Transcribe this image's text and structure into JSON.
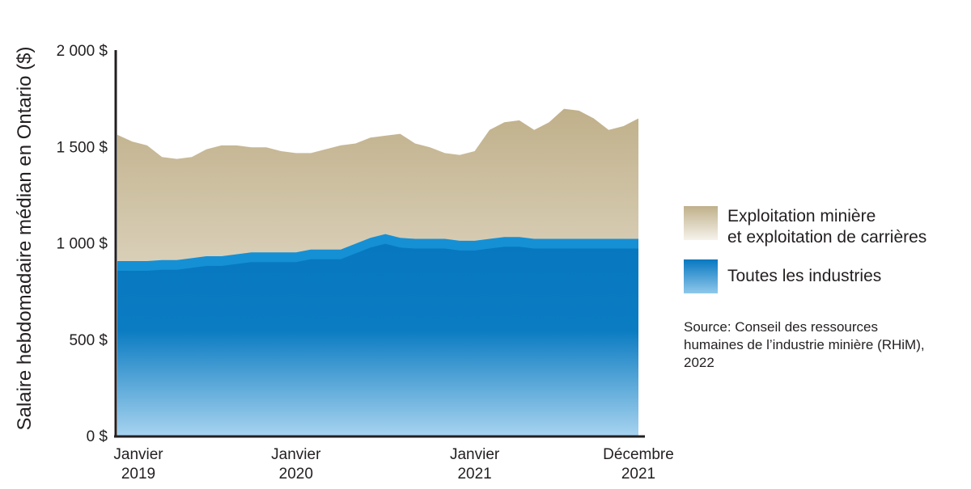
{
  "chart_data": {
    "type": "area",
    "ylabel": "Salaire hebdomadaire médian en Ontario ($)",
    "ylim": [
      0,
      2000
    ],
    "y_ticks": [
      "0 $",
      "500 $",
      "1 000 $",
      "1 500 $",
      "2 000 $"
    ],
    "y_tick_values": [
      0,
      500,
      1000,
      1500,
      2000
    ],
    "x_ticks": [
      {
        "line1": "Janvier",
        "line2": "2019",
        "index": 0
      },
      {
        "line1": "Janvier",
        "line2": "2020",
        "index": 12
      },
      {
        "line1": "Janvier",
        "line2": "2021",
        "index": 24
      },
      {
        "line1": "Décembre",
        "line2": "2021",
        "index": 35
      }
    ],
    "x": [
      "2019-01",
      "2019-02",
      "2019-03",
      "2019-04",
      "2019-05",
      "2019-06",
      "2019-07",
      "2019-08",
      "2019-09",
      "2019-10",
      "2019-11",
      "2019-12",
      "2020-01",
      "2020-02",
      "2020-03",
      "2020-04",
      "2020-05",
      "2020-06",
      "2020-07",
      "2020-08",
      "2020-09",
      "2020-10",
      "2020-11",
      "2020-12",
      "2021-01",
      "2021-02",
      "2021-03",
      "2021-04",
      "2021-05",
      "2021-06",
      "2021-07",
      "2021-08",
      "2021-09",
      "2021-10",
      "2021-11",
      "2021-12"
    ],
    "series": [
      {
        "name": "Exploitation minière\net exploitation de carrières",
        "values": [
          1565,
          1530,
          1510,
          1450,
          1440,
          1450,
          1490,
          1510,
          1510,
          1500,
          1500,
          1480,
          1470,
          1470,
          1490,
          1510,
          1520,
          1550,
          1560,
          1570,
          1520,
          1500,
          1470,
          1460,
          1480,
          1590,
          1630,
          1640,
          1590,
          1630,
          1700,
          1690,
          1650,
          1590,
          1610,
          1650
        ]
      },
      {
        "name": "Toutes les industries",
        "values": [
          910,
          910,
          910,
          915,
          915,
          925,
          935,
          935,
          945,
          955,
          955,
          955,
          955,
          970,
          970,
          970,
          1000,
          1030,
          1050,
          1030,
          1025,
          1025,
          1025,
          1015,
          1015,
          1025,
          1035,
          1035,
          1025,
          1025,
          1025,
          1025,
          1025,
          1025,
          1025,
          1025
        ]
      }
    ],
    "legend_position": "right",
    "grid": false
  },
  "colors": {
    "mining_top": "#c0b08a",
    "mining_bottom": "#f6f3ec",
    "all_band": "#1590d5",
    "all_top": "#0778c0",
    "all_bottom": "#a8d3ef",
    "axis": "#231f20"
  },
  "source_text": "Source: Conseil des ressources humaines de l’industrie minière (RHiM), 2022"
}
